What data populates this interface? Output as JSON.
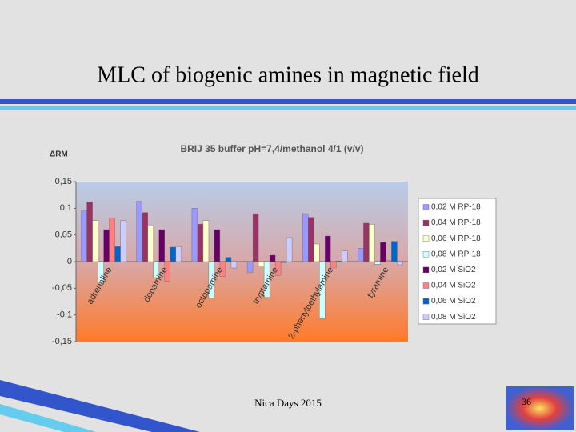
{
  "slide_title": "MLC of biogenic amines in magnetic field",
  "footer": "Nica Days 2015",
  "page_number": "36",
  "chart_data": {
    "type": "bar",
    "title": "BRIJ 35 buffer pH=7,4/methanol 4/1 (v/v)",
    "y_label": "ΔRM",
    "categories": [
      "adrenaline",
      "dopamine",
      "octopamine",
      "tryptamine",
      "2-phenyloethylamine",
      "tyramine"
    ],
    "series": [
      {
        "name": "0,02 M RP-18",
        "color": "#9999ff",
        "values": [
          0.095,
          0.113,
          0.1,
          -0.02,
          0.09,
          0.025
        ]
      },
      {
        "name": "0,04 M RP-18",
        "color": "#993366",
        "values": [
          0.112,
          0.092,
          0.07,
          0.09,
          0.083,
          0.072
        ]
      },
      {
        "name": "0,06 M RP-18",
        "color": "#ffffcc",
        "values": [
          0.077,
          0.067,
          0.077,
          -0.01,
          0.033,
          0.07
        ]
      },
      {
        "name": "0,08 M RP-18",
        "color": "#ccffff",
        "values": [
          -0.04,
          -0.03,
          -0.068,
          -0.067,
          -0.107,
          -0.005
        ]
      },
      {
        "name": "0,02 M SiO2",
        "color": "#660066",
        "values": [
          0.06,
          0.06,
          0.06,
          0.012,
          0.048,
          0.036
        ]
      },
      {
        "name": "0,04 M SiO2",
        "color": "#ff8080",
        "values": [
          0.082,
          -0.037,
          -0.028,
          -0.026,
          -0.012,
          0.002
        ]
      },
      {
        "name": "0,06 M SiO2",
        "color": "#0066cc",
        "values": [
          0.028,
          0.027,
          0.008,
          -0.002,
          0.001,
          0.038
        ]
      },
      {
        "name": "0,08 M SiO2",
        "color": "#ccccff",
        "values": [
          0.077,
          0.028,
          -0.012,
          0.045,
          0.02,
          -0.006
        ]
      }
    ],
    "ylim": [
      -0.15,
      0.15
    ],
    "yticks": [
      {
        "value": -0.15,
        "label": "-0,15"
      },
      {
        "value": -0.1,
        "label": "-0,1"
      },
      {
        "value": -0.05,
        "label": "-0,05"
      },
      0,
      {
        "value": 0.05,
        "label": "0,05"
      },
      {
        "value": 0.1,
        "label": "0,1"
      },
      {
        "value": 0.15,
        "label": "0,15"
      }
    ],
    "grid": false,
    "legend": "right"
  }
}
